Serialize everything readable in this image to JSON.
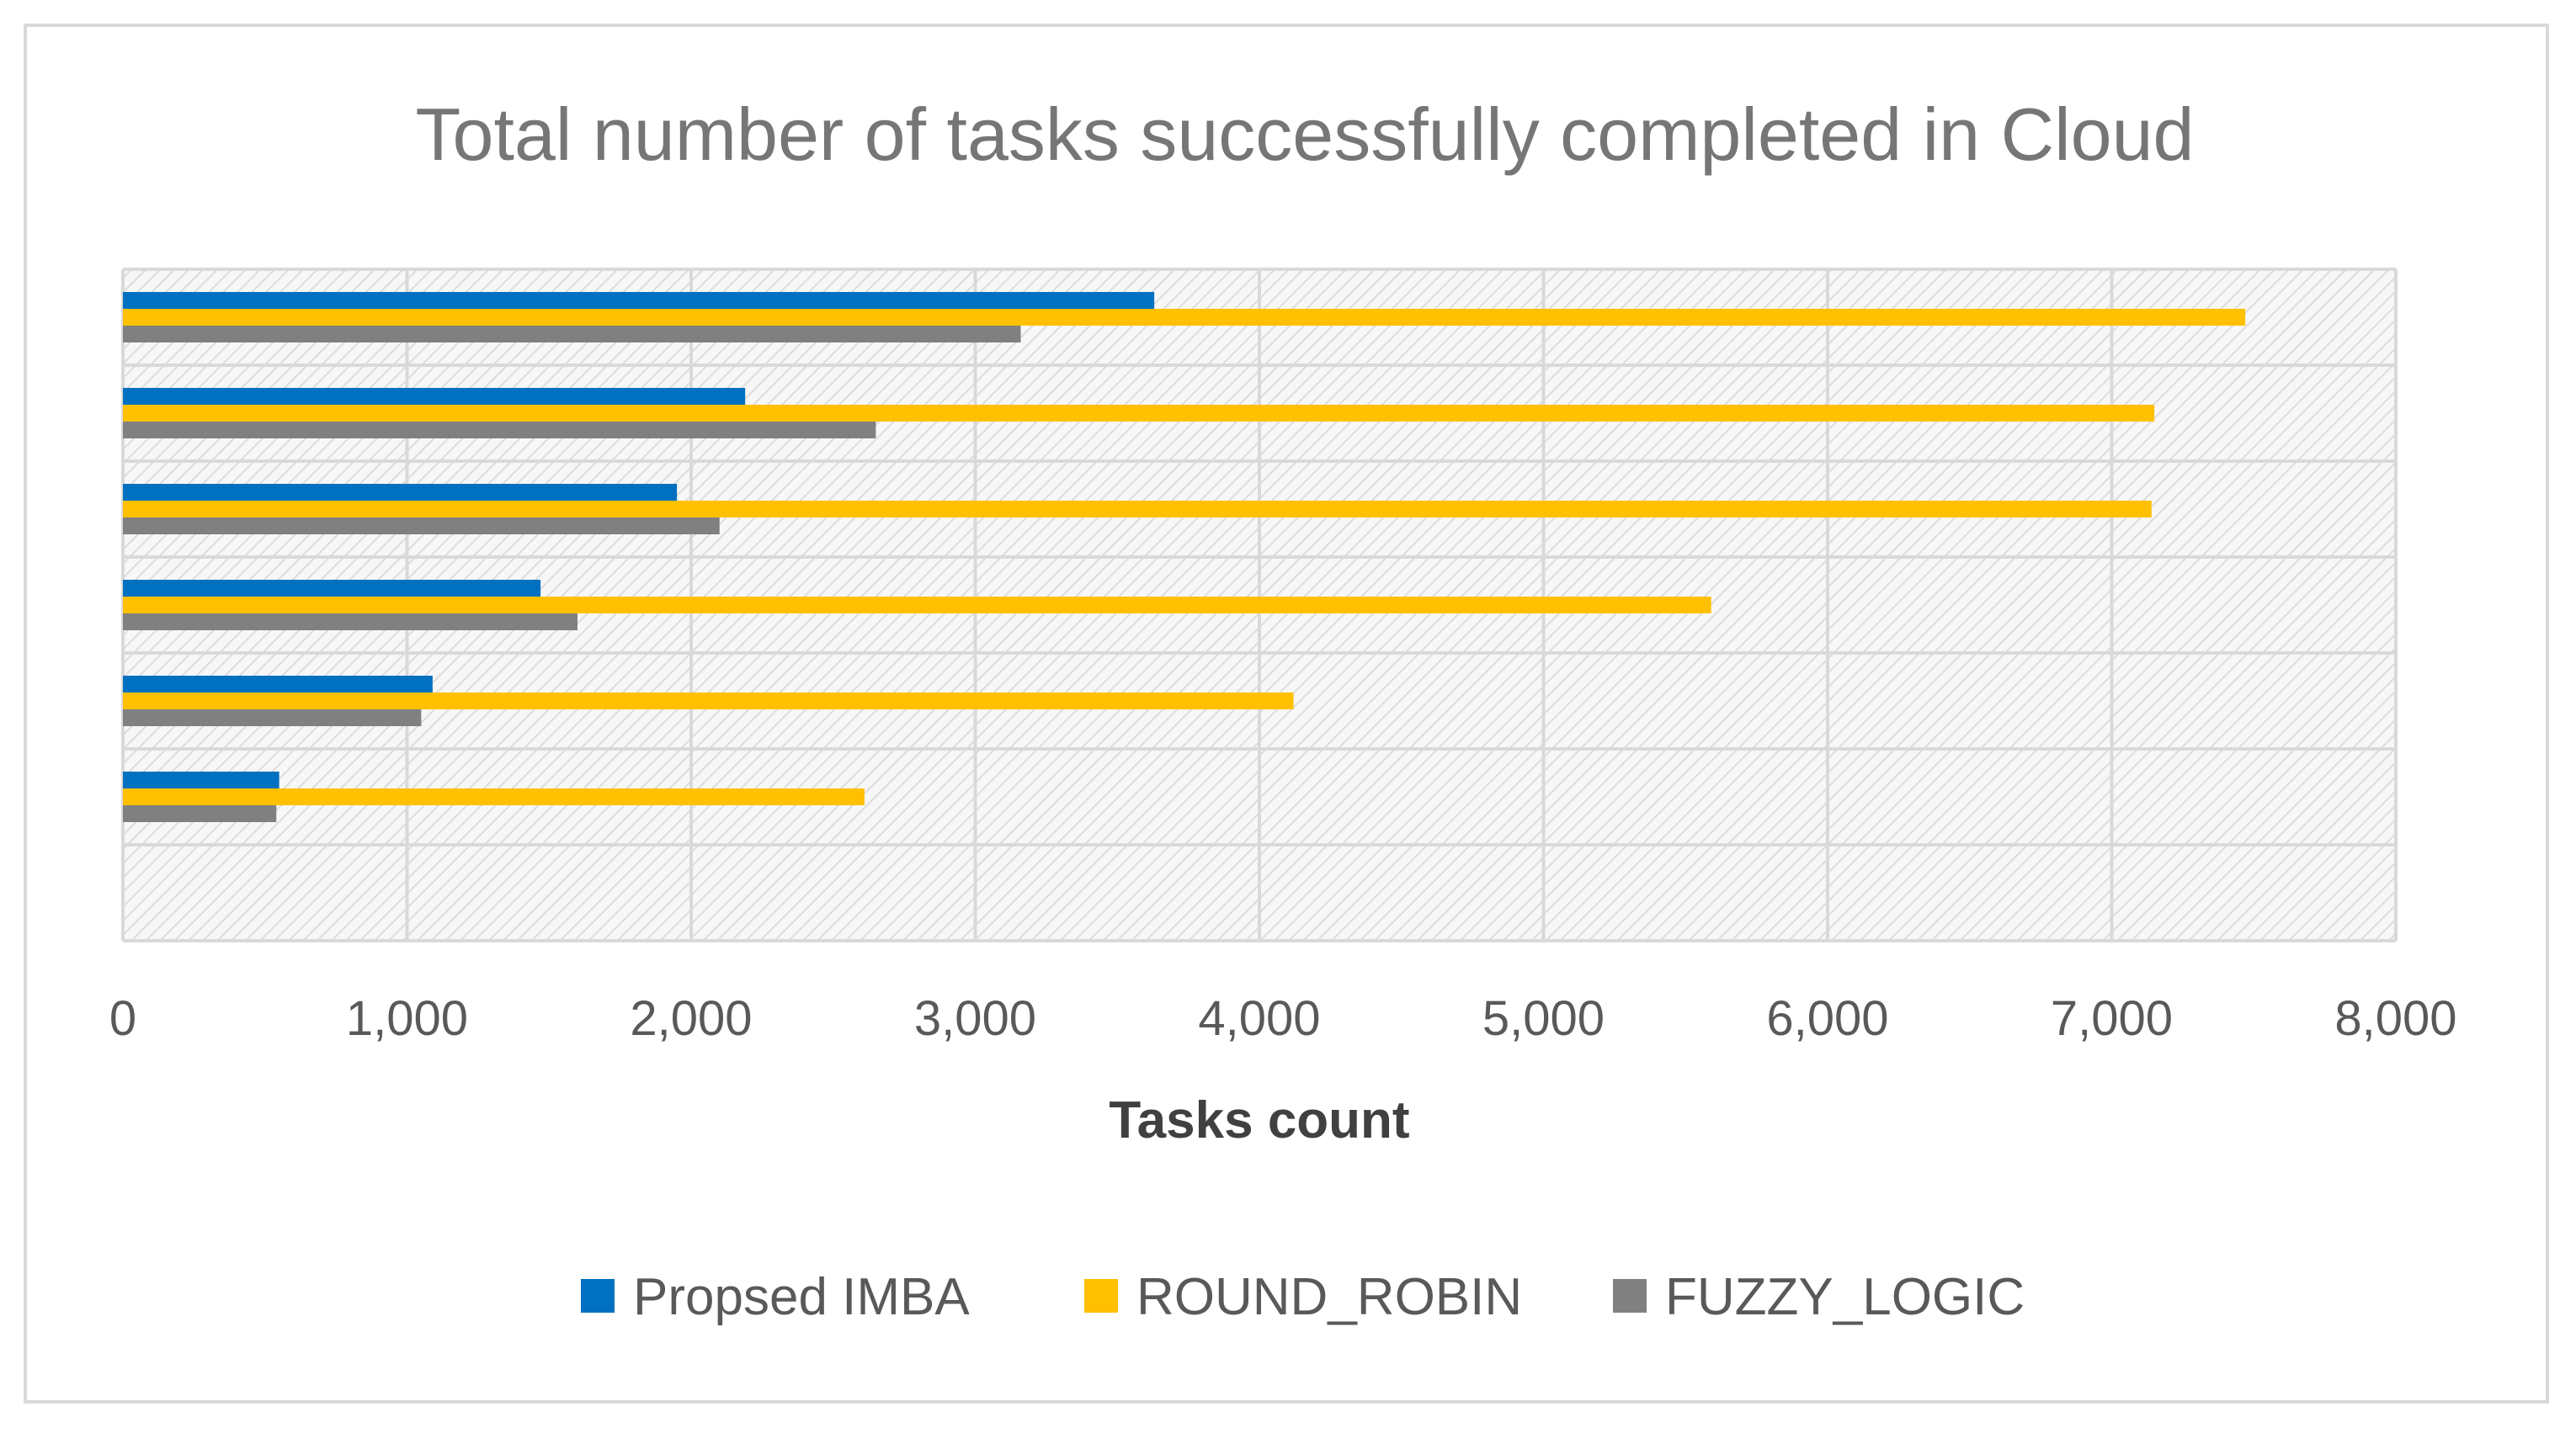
{
  "colors": {
    "series": [
      "#0070c0",
      "#ffc000",
      "#808080"
    ],
    "grid": "#d9d9d9",
    "plot_bg": "#f2f2f2"
  },
  "chart_data": {
    "type": "bar",
    "orientation": "horizontal",
    "title": "Total number of tasks successfully completed in Cloud",
    "xlabel": "Tasks count",
    "ylabel": "",
    "xlim": [
      0,
      8000
    ],
    "x_ticks": [
      0,
      1000,
      2000,
      3000,
      4000,
      5000,
      6000,
      7000,
      8000
    ],
    "x_tick_labels": [
      "0",
      "1,000",
      "2,000",
      "3,000",
      "4,000",
      "5,000",
      "6,000",
      "7,000",
      "8,000"
    ],
    "categories": [
      "",
      "",
      "",
      "",
      "",
      "",
      ""
    ],
    "category_order": "bottom-to-top",
    "series": [
      {
        "name": "Propsed IMBA",
        "values": [
          0,
          550,
          1090,
          1470,
          1950,
          2190,
          3630
        ]
      },
      {
        "name": "ROUND_ROBIN",
        "values": [
          0,
          2610,
          4120,
          5590,
          7140,
          7150,
          7470
        ]
      },
      {
        "name": "FUZZY_LOGIC",
        "values": [
          0,
          540,
          1050,
          1600,
          2100,
          2650,
          3160
        ]
      }
    ],
    "legend_position": "bottom",
    "grid": true
  }
}
